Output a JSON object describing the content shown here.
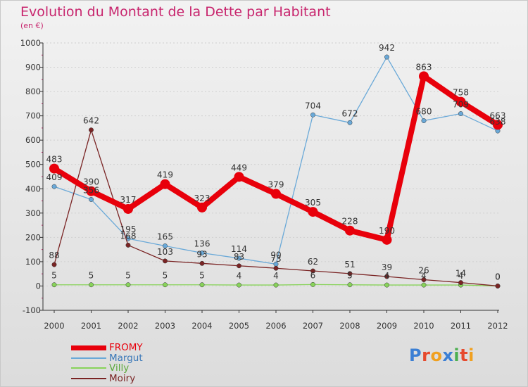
{
  "title": "Evolution du Montant de la Dette par Habitant",
  "subtitle": "(en €)",
  "logo": {
    "text": "Proxiti",
    "colors": [
      "#3b7fd4",
      "#e64a2e",
      "#f0a020",
      "#3b7fd4",
      "#4caf50",
      "#e64a2e",
      "#f0a020"
    ]
  },
  "colors": {
    "title": "#c8266e",
    "axis": "#333333",
    "grid": "#cfcfcf"
  },
  "chart_data": {
    "type": "line",
    "x": [
      "2000",
      "2001",
      "2002",
      "2003",
      "2004",
      "2005",
      "2006",
      "2007",
      "2008",
      "2009",
      "2010",
      "2011",
      "2012"
    ],
    "ylim": [
      -100,
      1000
    ],
    "yticks": [
      -100,
      0,
      100,
      200,
      300,
      400,
      500,
      600,
      700,
      800,
      900,
      1000
    ],
    "grid": true,
    "legend_position": "bottom-left",
    "series": [
      {
        "name": "FROMY",
        "color": "#e8000b",
        "values": [
          483,
          390,
          317,
          419,
          323,
          449,
          379,
          305,
          228,
          190,
          863,
          758,
          663
        ],
        "labels": [
          "483",
          "390",
          "317",
          "419",
          "323",
          "449",
          "379",
          "305",
          "228",
          "190",
          "863",
          "758",
          "663"
        ]
      },
      {
        "name": "Margut",
        "color": "#6aa9d8",
        "values": [
          409,
          356,
          195,
          165,
          136,
          114,
          90,
          704,
          672,
          942,
          680,
          709,
          638
        ],
        "labels": [
          "409",
          "356",
          "195",
          "165",
          "136",
          "114",
          "90",
          "704",
          "672",
          "942",
          "680",
          "709",
          "638"
        ]
      },
      {
        "name": "Villy",
        "color": "#88d35a",
        "values": [
          5,
          5,
          5,
          5,
          5,
          4,
          4,
          6,
          5,
          4,
          4,
          4,
          0
        ],
        "labels": [
          "5",
          "5",
          "5",
          "5",
          "5",
          "4",
          "4",
          "6",
          "5",
          "4",
          "4",
          "4",
          "0"
        ]
      },
      {
        "name": "Moiry",
        "color": "#7a2424",
        "values": [
          88,
          642,
          168,
          103,
          93,
          83,
          73,
          62,
          51,
          39,
          26,
          14,
          0
        ],
        "labels": [
          "88",
          "642",
          "168",
          "103",
          "93",
          "83",
          "73",
          "62",
          "51",
          "39",
          "26",
          "14",
          "0"
        ]
      }
    ]
  }
}
